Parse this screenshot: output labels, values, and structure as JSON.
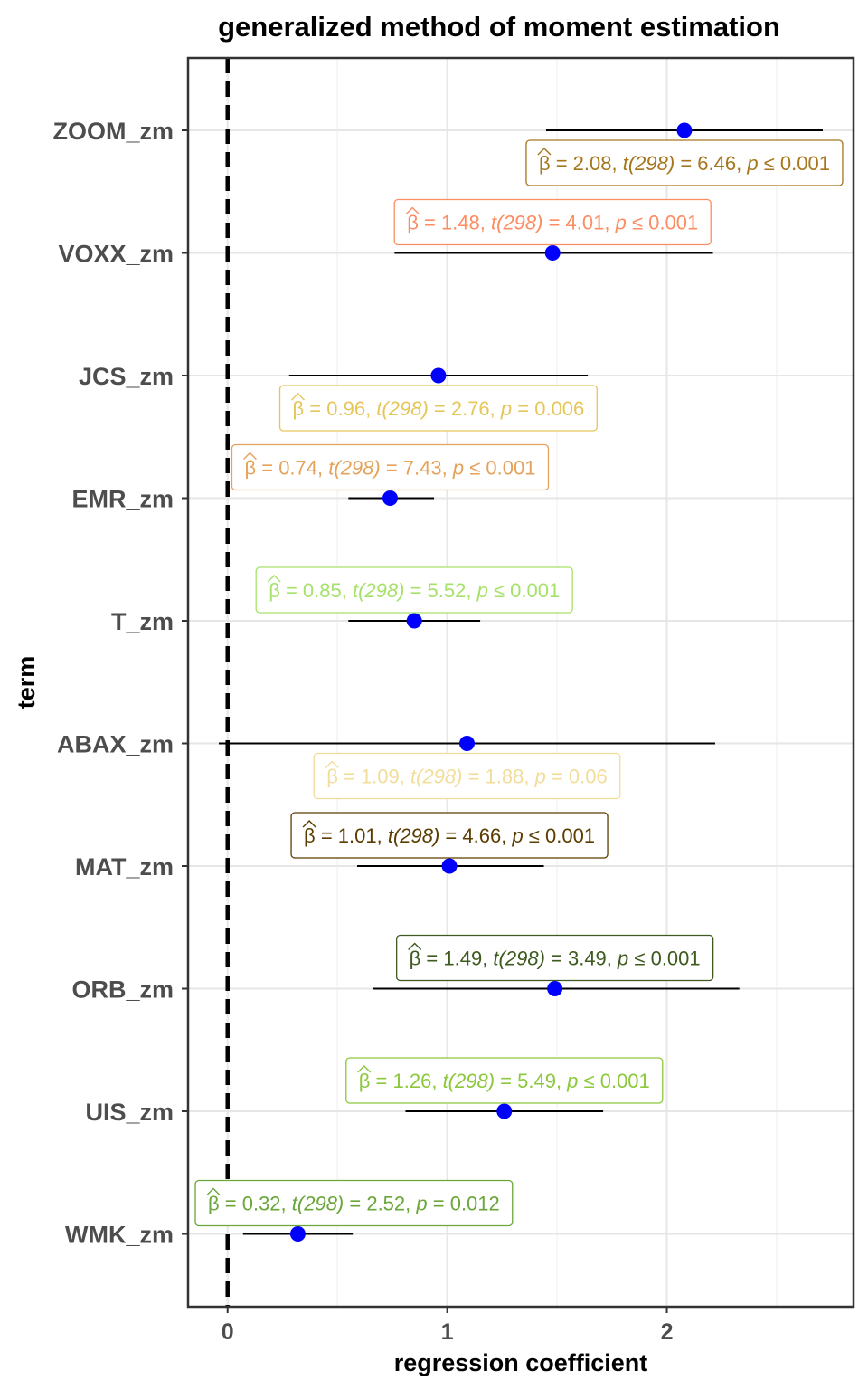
{
  "chart_data": {
    "type": "scatter",
    "title": "generalized method of moment estimation",
    "xlabel": "regression coefficient",
    "ylabel": "term",
    "xlim": [
      -0.18,
      2.85
    ],
    "xticks": [
      0,
      1,
      2
    ],
    "grid": true,
    "reference_line": {
      "x": 0,
      "style": "dashed"
    },
    "point_color": "#0000ff",
    "terms": [
      {
        "term": "ZOOM_zm",
        "estimate": 2.08,
        "conf_low": 1.45,
        "conf_high": 2.71,
        "label_color": "#a6761d",
        "label": {
          "beta": "2.08",
          "t_stat": "t(298)",
          "t_value": "6.46",
          "p_sym": "≤",
          "p_value": "0.001"
        }
      },
      {
        "term": "VOXX_zm",
        "estimate": 1.48,
        "conf_low": 0.76,
        "conf_high": 2.21,
        "label_color": "#fc8d62",
        "label": {
          "beta": "1.48",
          "t_stat": "t(298)",
          "t_value": "4.01",
          "p_sym": "≤",
          "p_value": "0.001"
        }
      },
      {
        "term": "JCS_zm",
        "estimate": 0.96,
        "conf_low": 0.28,
        "conf_high": 1.64,
        "label_color": "#e6c65a",
        "label": {
          "beta": "0.96",
          "t_stat": "t(298)",
          "t_value": "2.76",
          "p_sym": "=",
          "p_value": "0.006"
        }
      },
      {
        "term": "EMR_zm",
        "estimate": 0.74,
        "conf_low": 0.55,
        "conf_high": 0.94,
        "label_color": "#e5a25a",
        "label": {
          "beta": "0.74",
          "t_stat": "t(298)",
          "t_value": "7.43",
          "p_sym": "≤",
          "p_value": "0.001"
        }
      },
      {
        "term": "T_zm",
        "estimate": 0.85,
        "conf_low": 0.55,
        "conf_high": 1.15,
        "label_color": "#a6e26a",
        "label": {
          "beta": "0.85",
          "t_stat": "t(298)",
          "t_value": "5.52",
          "p_sym": "≤",
          "p_value": "0.001"
        }
      },
      {
        "term": "ABAX_zm",
        "estimate": 1.09,
        "conf_low": -0.04,
        "conf_high": 2.22,
        "label_color": "#f2dd9a",
        "label": {
          "beta": "1.09",
          "t_stat": "t(298)",
          "t_value": "1.88",
          "p_sym": "=",
          "p_value": "0.06"
        }
      },
      {
        "term": "MAT_zm",
        "estimate": 1.01,
        "conf_low": 0.59,
        "conf_high": 1.44,
        "label_color": "#5c3d00",
        "label": {
          "beta": "1.01",
          "t_stat": "t(298)",
          "t_value": "4.66",
          "p_sym": "≤",
          "p_value": "0.001"
        }
      },
      {
        "term": "ORB_zm",
        "estimate": 1.49,
        "conf_low": 0.66,
        "conf_high": 2.33,
        "label_color": "#3f5a1e",
        "label": {
          "beta": "1.49",
          "t_stat": "t(298)",
          "t_value": "3.49",
          "p_sym": "≤",
          "p_value": "0.001"
        }
      },
      {
        "term": "UIS_zm",
        "estimate": 1.26,
        "conf_low": 0.81,
        "conf_high": 1.71,
        "label_color": "#8cc83c",
        "label": {
          "beta": "1.26",
          "t_stat": "t(298)",
          "t_value": "5.49",
          "p_sym": "≤",
          "p_value": "0.001"
        }
      },
      {
        "term": "WMK_zm",
        "estimate": 0.32,
        "conf_low": 0.07,
        "conf_high": 0.57,
        "label_color": "#6aa63a",
        "label": {
          "beta": "0.32",
          "t_stat": "t(298)",
          "t_value": "2.52",
          "p_sym": "=",
          "p_value": "0.012"
        }
      }
    ]
  }
}
